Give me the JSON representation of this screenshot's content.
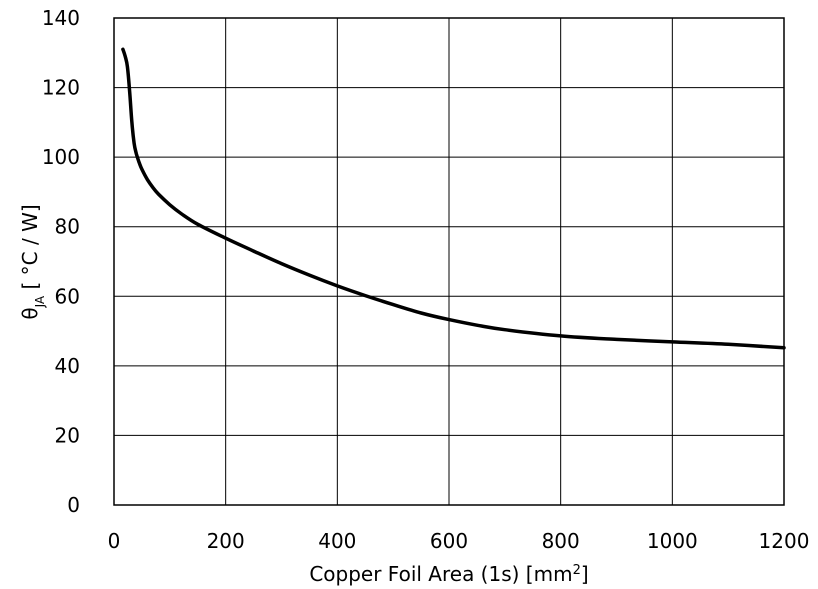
{
  "chart_data": {
    "type": "line",
    "xlabel": {
      "main": "Copper Foil Area (1s) [mm",
      "sup": "2",
      "end": "]"
    },
    "ylabel": {
      "symbol": "θ",
      "sub": "JA",
      "rest": " [ °C / W]"
    },
    "xlim": [
      0,
      1200
    ],
    "ylim": [
      0,
      140
    ],
    "xticks": [
      "0",
      "200",
      "400",
      "600",
      "800",
      "1000",
      "1200"
    ],
    "yticks": [
      "0",
      "20",
      "40",
      "60",
      "80",
      "100",
      "120",
      "140"
    ],
    "xtick_values": [
      0,
      200,
      400,
      600,
      800,
      1000,
      1200
    ],
    "ytick_values": [
      0,
      20,
      40,
      60,
      80,
      100,
      120,
      140
    ],
    "grid": true,
    "series": [
      {
        "x": [
          16,
          20,
          24,
          28,
          32,
          36,
          40,
          45,
          50,
          60,
          70,
          80,
          100,
          120,
          150,
          200,
          250,
          300,
          350,
          400,
          450,
          500,
          550,
          600,
          650,
          700,
          800,
          900,
          1000,
          1100,
          1200
        ],
        "y": [
          131,
          129,
          126,
          119,
          110,
          104,
          101,
          98.5,
          96.5,
          93.5,
          91.2,
          89.3,
          86.3,
          83.8,
          80.7,
          76.7,
          73.0,
          69.4,
          66.1,
          63.0,
          60.2,
          57.6,
          55.2,
          53.3,
          51.7,
          50.4,
          48.6,
          47.6,
          46.9,
          46.2,
          45.2
        ]
      }
    ]
  }
}
